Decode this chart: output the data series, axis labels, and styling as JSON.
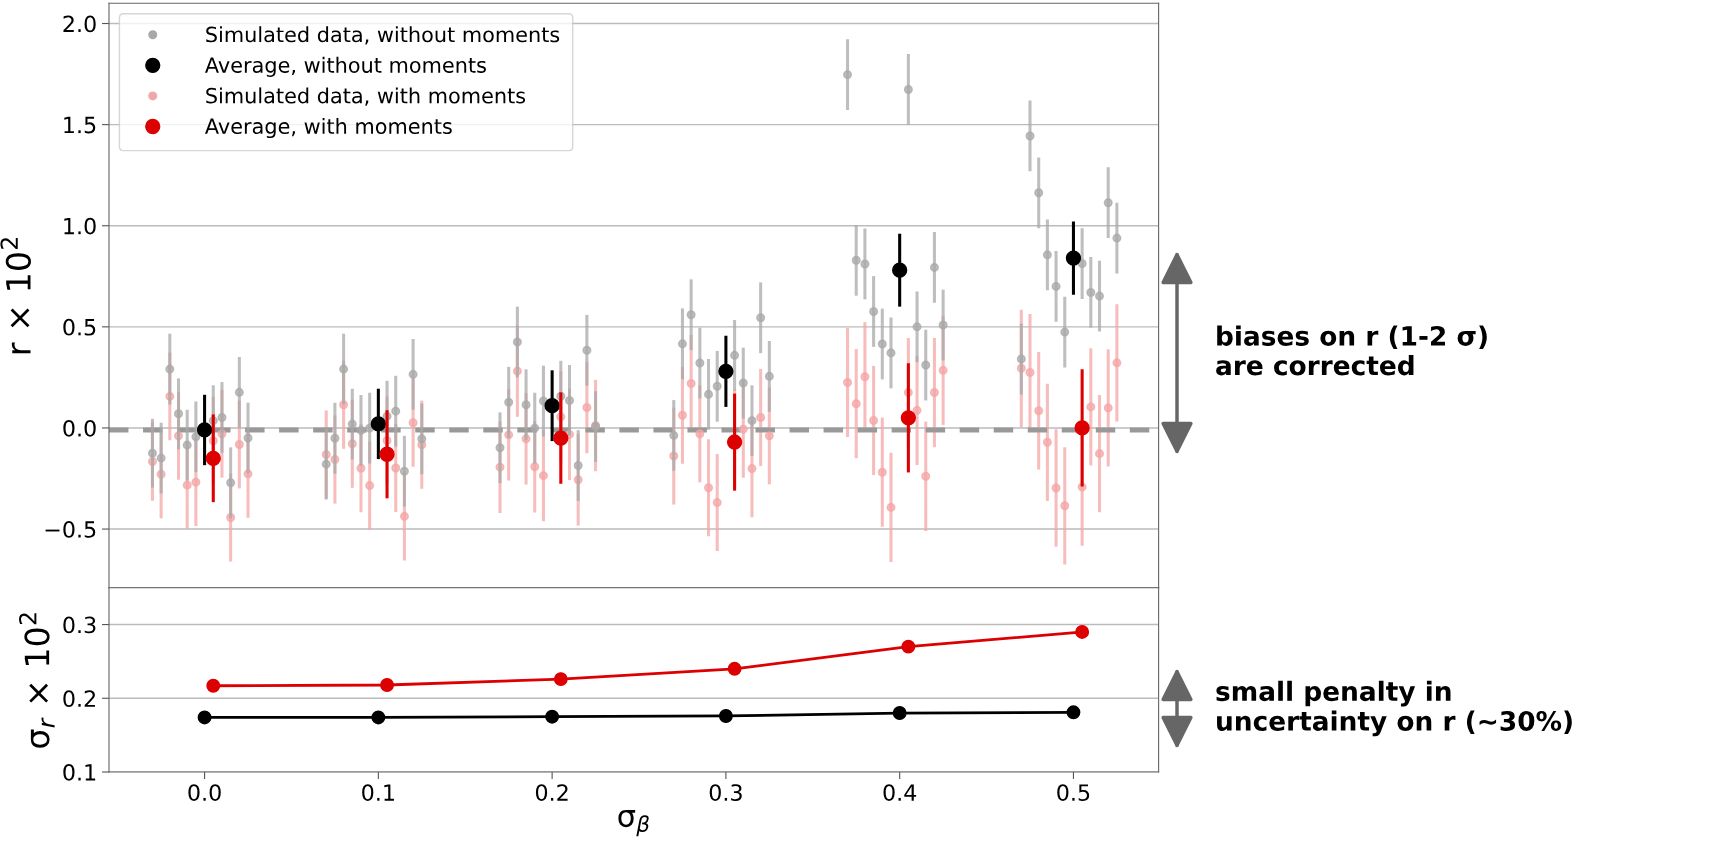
{
  "chart_data": [
    {
      "type": "scatter",
      "ylabel": "r × 10$^{2}$",
      "xlim": [
        -0.055,
        0.549
      ],
      "ylim": [
        -0.79,
        2.1
      ],
      "yticks": [
        {
          "value": -0.5,
          "label": "−0.5"
        },
        {
          "value": 0,
          "label": "0.0"
        },
        {
          "value": 0.5,
          "label": "0.5"
        },
        {
          "value": 1.0,
          "label": "1.0"
        },
        {
          "value": 1.5,
          "label": "1.5"
        },
        {
          "value": 2.0,
          "label": "2.0"
        }
      ],
      "tick_labels": "y",
      "grid": "y",
      "legend": "top left",
      "marker": "circle",
      "ref_lines": [
        {
          "axis": "y",
          "value": -0.01,
          "color": "#999999",
          "line_style": "dashed"
        }
      ],
      "annotations": [
        "biases on r (1-2 σ)\nare corrected",
        "small penalty in\nuncertainty on r (~30%)"
      ],
      "series": [
        {
          "name": "Simulated data, without moments",
          "color": "#a8a8a8",
          "x": [
            -0.03,
            -0.025,
            -0.02,
            -0.015,
            -0.01,
            -0.005,
            0.005,
            0.01,
            0.015,
            0.02,
            0.025,
            0.07,
            0.075,
            0.08,
            0.085,
            0.09,
            0.095,
            0.105,
            0.11,
            0.115,
            0.12,
            0.125,
            0.17,
            0.175,
            0.18,
            0.185,
            0.19,
            0.195,
            0.205,
            0.21,
            0.215,
            0.22,
            0.225,
            0.27,
            0.275,
            0.28,
            0.285,
            0.29,
            0.295,
            0.305,
            0.31,
            0.315,
            0.32,
            0.325,
            0.37,
            0.375,
            0.38,
            0.385,
            0.39,
            0.395,
            0.405,
            0.41,
            0.415,
            0.42,
            0.425,
            0.47,
            0.475,
            0.48,
            0.485,
            0.49,
            0.495,
            0.505,
            0.51,
            0.515,
            0.52,
            0.525
          ],
          "values": [
            -0.125,
            -0.149,
            0.291,
            0.07,
            -0.085,
            -0.044,
            0.036,
            0.052,
            -0.271,
            0.176,
            -0.05,
            -0.179,
            -0.051,
            0.291,
            0.019,
            -0.012,
            -0.001,
            0.058,
            0.083,
            -0.214,
            0.265,
            -0.054,
            -0.098,
            0.127,
            0.425,
            0.115,
            -0.001,
            0.133,
            0.157,
            0.136,
            -0.186,
            0.384,
            0.007,
            -0.037,
            0.416,
            0.56,
            0.321,
            0.166,
            0.206,
            0.359,
            0.222,
            0.036,
            0.545,
            0.255,
            1.747,
            0.829,
            0.811,
            0.576,
            0.415,
            0.371,
            1.674,
            0.5,
            0.311,
            0.794,
            0.509,
            0.341,
            1.444,
            1.163,
            0.856,
            0.7,
            0.474,
            0.813,
            0.67,
            0.652,
            1.114,
            0.939
          ],
          "errors": [
            0.17,
            0.175,
            0.175,
            0.175,
            0.175,
            0.175,
            0.175,
            0.175,
            0.175,
            0.175,
            0.175,
            0.175,
            0.175,
            0.175,
            0.175,
            0.175,
            0.175,
            0.175,
            0.175,
            0.175,
            0.175,
            0.175,
            0.175,
            0.175,
            0.175,
            0.175,
            0.175,
            0.175,
            0.175,
            0.175,
            0.175,
            0.175,
            0.175,
            0.175,
            0.175,
            0.175,
            0.175,
            0.175,
            0.175,
            0.175,
            0.175,
            0.175,
            0.175,
            0.175,
            0.175,
            0.175,
            0.175,
            0.175,
            0.175,
            0.175,
            0.175,
            0.175,
            0.175,
            0.175,
            0.175,
            0.175,
            0.175,
            0.175,
            0.175,
            0.175,
            0.175,
            0.175,
            0.175,
            0.175,
            0.175,
            0.175
          ]
        },
        {
          "name": "Average, without moments",
          "color": "#000000",
          "x": [
            0,
            0.1,
            0.2,
            0.3,
            0.4,
            0.5
          ],
          "values": [
            -0.01,
            0.02,
            0.11,
            0.28,
            0.78,
            0.84
          ],
          "errors": [
            0.174,
            0.174,
            0.175,
            0.176,
            0.18,
            0.181
          ]
        },
        {
          "name": "Simulated data, with moments",
          "color": "#f4a6a6",
          "x": [
            -0.03,
            -0.025,
            -0.02,
            -0.015,
            -0.01,
            -0.005,
            0.005,
            0.01,
            0.015,
            0.02,
            0.025,
            0.07,
            0.075,
            0.08,
            0.085,
            0.09,
            0.095,
            0.105,
            0.11,
            0.115,
            0.12,
            0.125,
            0.17,
            0.175,
            0.18,
            0.185,
            0.19,
            0.195,
            0.205,
            0.21,
            0.215,
            0.22,
            0.225,
            0.27,
            0.275,
            0.28,
            0.285,
            0.29,
            0.295,
            0.305,
            0.31,
            0.315,
            0.32,
            0.325,
            0.37,
            0.375,
            0.38,
            0.385,
            0.39,
            0.395,
            0.405,
            0.41,
            0.415,
            0.42,
            0.425,
            0.47,
            0.475,
            0.48,
            0.485,
            0.49,
            0.495,
            0.505,
            0.51,
            0.515,
            0.52,
            0.525
          ],
          "values": [
            -0.166,
            -0.229,
            0.156,
            -0.039,
            -0.283,
            -0.268,
            -0.063,
            -0.029,
            -0.443,
            -0.082,
            -0.227,
            -0.131,
            -0.156,
            0.115,
            -0.078,
            -0.199,
            -0.285,
            -0.062,
            -0.198,
            -0.437,
            0.026,
            -0.083,
            -0.194,
            -0.034,
            0.281,
            -0.054,
            -0.192,
            -0.236,
            0.055,
            -0.032,
            -0.256,
            0.101,
            0.012,
            -0.139,
            0.063,
            0.22,
            -0.029,
            -0.296,
            -0.369,
            -0.05,
            -0.006,
            -0.201,
            0.052,
            -0.039,
            0.225,
            0.12,
            0.253,
            0.037,
            -0.219,
            -0.393,
            0.175,
            0.087,
            -0.239,
            0.175,
            0.285,
            0.295,
            0.274,
            0.085,
            -0.071,
            -0.297,
            -0.385,
            -0.292,
            0.104,
            -0.127,
            0.099,
            0.322
          ],
          "errors": [
            0.194,
            0.217,
            0.217,
            0.217,
            0.217,
            0.217,
            0.217,
            0.217,
            0.217,
            0.217,
            0.217,
            0.218,
            0.218,
            0.218,
            0.218,
            0.218,
            0.218,
            0.218,
            0.218,
            0.218,
            0.218,
            0.218,
            0.226,
            0.226,
            0.226,
            0.226,
            0.226,
            0.226,
            0.226,
            0.226,
            0.226,
            0.226,
            0.226,
            0.24,
            0.24,
            0.24,
            0.24,
            0.24,
            0.24,
            0.24,
            0.24,
            0.24,
            0.24,
            0.24,
            0.27,
            0.27,
            0.27,
            0.27,
            0.27,
            0.27,
            0.27,
            0.27,
            0.27,
            0.27,
            0.27,
            0.29,
            0.29,
            0.29,
            0.29,
            0.29,
            0.29,
            0.29,
            0.29,
            0.29,
            0.29,
            0.29
          ]
        },
        {
          "name": "Average, with moments",
          "color": "#dd0000",
          "x": [
            0.005,
            0.105,
            0.205,
            0.305,
            0.405,
            0.505
          ],
          "values": [
            -0.15,
            -0.13,
            -0.05,
            -0.07,
            0.05,
            0.0
          ],
          "errors": [
            0.217,
            0.218,
            0.226,
            0.24,
            0.27,
            0.29
          ]
        }
      ]
    },
    {
      "type": "line",
      "xlabel": "σ$_{β}$",
      "ylabel": "σ$_{r}$ × 10$^{2}$",
      "xlim": [
        -0.055,
        0.549
      ],
      "ylim": [
        0.1,
        0.35
      ],
      "xticks": [
        {
          "value": 0,
          "label": "0.0"
        },
        {
          "value": 0.1,
          "label": "0.1"
        },
        {
          "value": 0.2,
          "label": "0.2"
        },
        {
          "value": 0.3,
          "label": "0.3"
        },
        {
          "value": 0.4,
          "label": "0.4"
        },
        {
          "value": 0.5,
          "label": "0.5"
        }
      ],
      "yticks": [
        0.1,
        0.2,
        0.3
      ],
      "grid": "y",
      "marker": "circle",
      "series": [
        {
          "color": "#dd0000",
          "x": [
            0.005,
            0.105,
            0.205,
            0.305,
            0.405,
            0.505
          ],
          "values": [
            0.217,
            0.218,
            0.226,
            0.24,
            0.27,
            0.29
          ]
        },
        {
          "color": "#000000",
          "x": [
            0,
            0.1,
            0.2,
            0.3,
            0.4,
            0.5
          ],
          "values": [
            0.174,
            0.174,
            0.175,
            0.176,
            0.18,
            0.181
          ]
        }
      ]
    }
  ]
}
